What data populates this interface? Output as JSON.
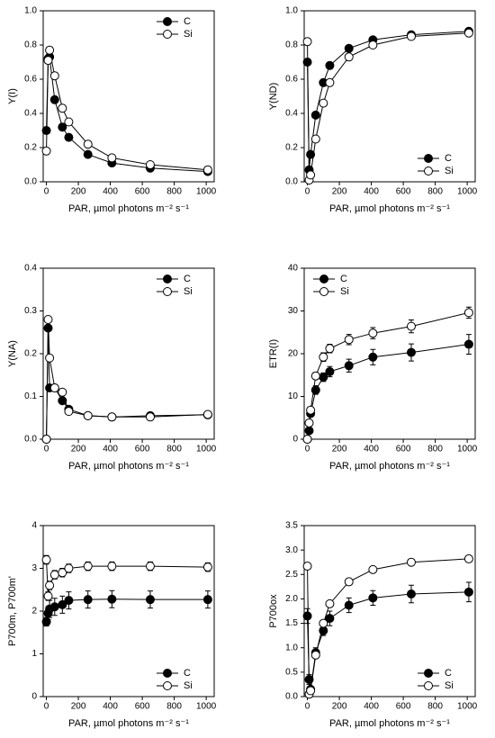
{
  "chart_data": [
    {
      "type": "line",
      "y_label": "Y(I)",
      "x_label": "PAR, µmol photons m⁻² s⁻¹",
      "x": [
        0,
        11,
        20,
        52,
        100,
        140,
        260,
        410,
        650,
        1010
      ],
      "xlim": [
        -20,
        1050
      ],
      "xticks": [
        0,
        200,
        400,
        600,
        800,
        1000
      ],
      "ylim": [
        0,
        1
      ],
      "yticks": [
        {
          "value": 0,
          "label": "0.0"
        },
        0.2,
        0.4,
        0.6,
        0.8,
        {
          "value": 1,
          "label": "1.0"
        }
      ],
      "legend": "upper right",
      "series": [
        {
          "name": "C",
          "color": "#000000",
          "filled": true,
          "values": [
            0.3,
            0.72,
            0.73,
            0.48,
            0.32,
            0.26,
            0.16,
            0.11,
            0.08,
            0.06
          ]
        },
        {
          "name": "Si",
          "color": "#000000",
          "filled": false,
          "values": [
            0.18,
            0.71,
            0.77,
            0.62,
            0.43,
            0.35,
            0.22,
            0.14,
            0.1,
            0.07
          ]
        }
      ]
    },
    {
      "type": "line",
      "y_label": "Y(ND)",
      "x_label": "PAR, µmol photons m⁻² s⁻¹",
      "x": [
        0,
        11,
        20,
        52,
        100,
        140,
        260,
        410,
        650,
        1010
      ],
      "xlim": [
        -20,
        1050
      ],
      "xticks": [
        0,
        200,
        400,
        600,
        800,
        1000
      ],
      "ylim": [
        0,
        1
      ],
      "yticks": [
        {
          "value": 0,
          "label": "0.0"
        },
        0.2,
        0.4,
        0.6,
        0.8,
        {
          "value": 1,
          "label": "1.0"
        }
      ],
      "legend": "lower right",
      "series": [
        {
          "name": "C",
          "color": "#000000",
          "filled": true,
          "values": [
            0.7,
            0.07,
            0.16,
            0.39,
            0.58,
            0.68,
            0.78,
            0.83,
            0.86,
            0.88
          ]
        },
        {
          "name": "Si",
          "color": "#000000",
          "filled": false,
          "values": [
            0.82,
            0.01,
            0.04,
            0.25,
            0.46,
            0.58,
            0.73,
            0.8,
            0.85,
            0.87
          ]
        }
      ]
    },
    {
      "type": "line",
      "y_label": "Y(NA)",
      "x_label": "PAR, µmol photons m⁻² s⁻¹",
      "x": [
        0,
        11,
        20,
        52,
        100,
        140,
        260,
        410,
        650,
        1010
      ],
      "xlim": [
        -20,
        1050
      ],
      "xticks": [
        0,
        200,
        400,
        600,
        800,
        1000
      ],
      "ylim": [
        0,
        0.4
      ],
      "yticks": [
        {
          "value": 0,
          "label": "0.0"
        },
        0.1,
        0.2,
        0.3,
        0.4
      ],
      "legend": "upper right",
      "series": [
        {
          "name": "C",
          "color": "#000000",
          "filled": true,
          "values": [
            0,
            0.26,
            0.12,
            0.12,
            0.09,
            0.07,
            0.055,
            0.052,
            0.055,
            0.057
          ]
        },
        {
          "name": "Si",
          "color": "#000000",
          "filled": false,
          "values": [
            0,
            0.28,
            0.19,
            0.12,
            0.11,
            0.065,
            0.055,
            0.052,
            0.052,
            0.058
          ]
        }
      ]
    },
    {
      "type": "line",
      "y_label": "ETR(I)",
      "x_label": "PAR, µmol photons m⁻² s⁻¹",
      "x": [
        0,
        11,
        20,
        52,
        100,
        140,
        260,
        410,
        650,
        1010
      ],
      "xlim": [
        -20,
        1050
      ],
      "xticks": [
        0,
        200,
        400,
        600,
        800,
        1000
      ],
      "ylim": [
        0,
        40
      ],
      "yticks": [
        0,
        10,
        20,
        30,
        40
      ],
      "legend": "upper left",
      "series": [
        {
          "name": "C",
          "color": "#000000",
          "filled": true,
          "values": [
            0,
            2,
            6,
            11.5,
            14.5,
            15.8,
            17.2,
            19.2,
            20.3,
            22.2
          ],
          "errors": [
            0,
            0.3,
            0.5,
            1,
            1,
            1.2,
            1.5,
            1.8,
            2,
            2.3
          ]
        },
        {
          "name": "Si",
          "color": "#000000",
          "filled": false,
          "values": [
            0,
            3.8,
            6.8,
            14.8,
            19.2,
            21.2,
            23.3,
            24.8,
            26.4,
            29.6
          ],
          "errors": [
            0,
            0.3,
            0.5,
            0.8,
            1,
            1,
            1.2,
            1.3,
            1.5,
            1.3
          ]
        }
      ]
    },
    {
      "type": "line",
      "y_label": "P700m, P700m'",
      "x_label": "PAR, µmol photons m⁻² s⁻¹",
      "x": [
        0,
        11,
        20,
        52,
        100,
        140,
        260,
        410,
        650,
        1010
      ],
      "xlim": [
        -20,
        1050
      ],
      "xticks": [
        0,
        200,
        400,
        600,
        800,
        1000
      ],
      "ylim": [
        0,
        4
      ],
      "yticks": [
        0,
        1,
        2,
        3,
        4
      ],
      "legend": "lower right",
      "series": [
        {
          "name": "C",
          "color": "#000000",
          "filled": true,
          "values": [
            1.75,
            1.95,
            2.05,
            2.1,
            2.15,
            2.25,
            2.27,
            2.28,
            2.27,
            2.27
          ],
          "errors": [
            0.1,
            0.15,
            0.2,
            0.2,
            0.2,
            0.2,
            0.2,
            0.2,
            0.2,
            0.2
          ]
        },
        {
          "name": "Si",
          "color": "#000000",
          "filled": false,
          "values": [
            3.2,
            2.35,
            2.6,
            2.85,
            2.9,
            3.0,
            3.05,
            3.05,
            3.05,
            3.03
          ],
          "errors": [
            0.1,
            0.1,
            0.1,
            0.1,
            0.1,
            0.1,
            0.1,
            0.1,
            0.1,
            0.1
          ]
        }
      ]
    },
    {
      "type": "line",
      "y_label": "P700ox",
      "x_label": "PAR, µmol photons m⁻² s⁻¹",
      "x": [
        0,
        11,
        20,
        52,
        100,
        140,
        260,
        410,
        650,
        1010
      ],
      "xlim": [
        -20,
        1050
      ],
      "xticks": [
        0,
        200,
        400,
        600,
        800,
        1000
      ],
      "ylim": [
        0,
        3.5
      ],
      "yticks": [
        {
          "value": 0,
          "label": "0.0"
        },
        0.5,
        {
          "value": 1,
          "label": "1.0"
        },
        1.5,
        {
          "value": 2,
          "label": "2.0"
        },
        2.5,
        {
          "value": 3,
          "label": "3.0"
        },
        3.5
      ],
      "legend": "lower right",
      "series": [
        {
          "name": "C",
          "color": "#000000",
          "filled": true,
          "values": [
            1.65,
            0.35,
            0.15,
            0.9,
            1.35,
            1.6,
            1.87,
            2.02,
            2.1,
            2.14
          ],
          "errors": [
            0.15,
            0.1,
            0.05,
            0.1,
            0.1,
            0.15,
            0.15,
            0.15,
            0.18,
            0.2
          ]
        },
        {
          "name": "Si",
          "color": "#000000",
          "filled": false,
          "values": [
            2.67,
            0.05,
            0.12,
            0.85,
            1.5,
            1.9,
            2.35,
            2.6,
            2.75,
            2.82
          ],
          "errors": [
            0.05,
            0.03,
            0.03,
            0.05,
            0.05,
            0.05,
            0.05,
            0.05,
            0.05,
            0.05
          ]
        }
      ]
    }
  ]
}
